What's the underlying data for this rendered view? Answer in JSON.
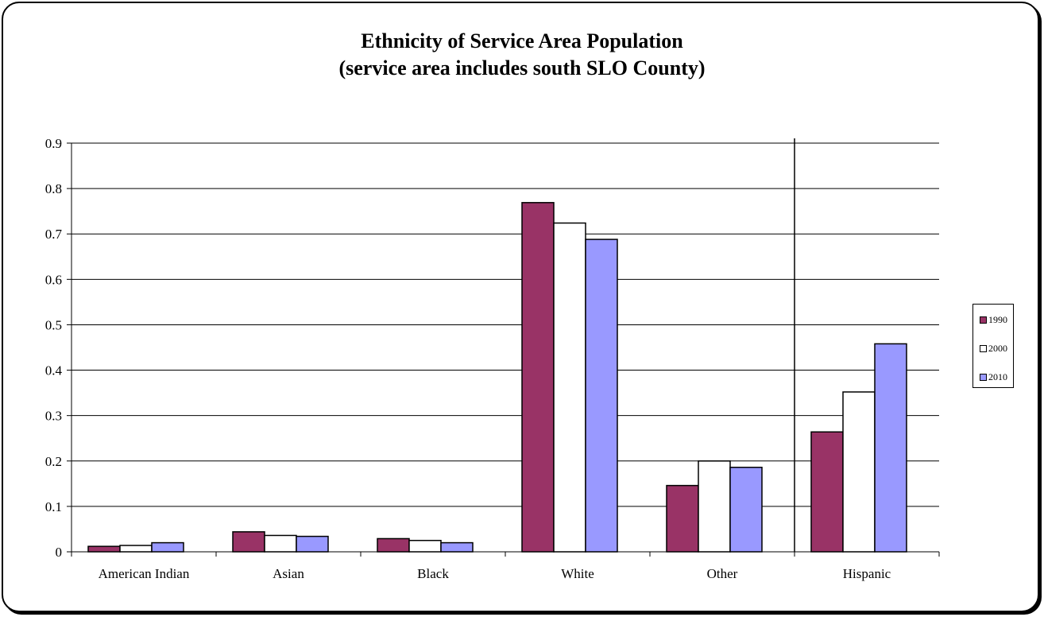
{
  "chart_data": {
    "type": "bar",
    "title": "Ethnicity of Service Area Population",
    "subtitle": "(service area includes south SLO County)",
    "categories": [
      "American Indian",
      "Asian",
      "Black",
      "White",
      "Other",
      "Hispanic"
    ],
    "series": [
      {
        "name": "1990",
        "color": "#993366",
        "values": [
          0.012,
          0.044,
          0.029,
          0.769,
          0.146,
          0.264
        ]
      },
      {
        "name": "2000",
        "color": "#ffffff",
        "values": [
          0.014,
          0.036,
          0.025,
          0.724,
          0.2,
          0.352
        ]
      },
      {
        "name": "2010",
        "color": "#9999ff",
        "values": [
          0.02,
          0.034,
          0.02,
          0.688,
          0.186,
          0.458
        ]
      }
    ],
    "ylim": [
      0,
      0.9
    ],
    "yticks": [
      "0",
      "0.1",
      "0.2",
      "0.3",
      "0.4",
      "0.5",
      "0.6",
      "0.7",
      "0.8",
      "0.9"
    ],
    "grid": true,
    "separator_before_category": "Hispanic",
    "legend_position": "right"
  }
}
